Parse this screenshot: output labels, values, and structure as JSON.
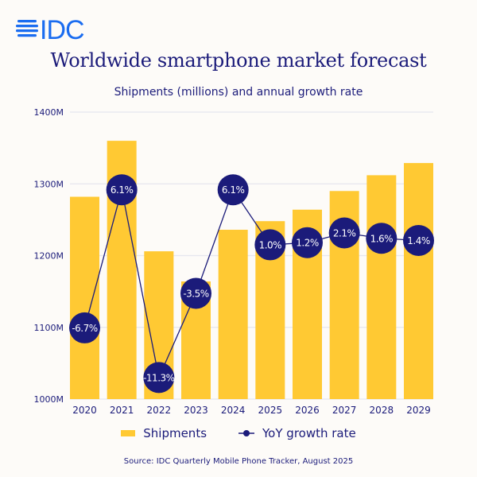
{
  "logo": {
    "text": "IDC",
    "color": "#1a6cf0"
  },
  "colors": {
    "bar": "#ffc933",
    "line": "#1b1b7a",
    "circle": "#1b1b7a",
    "grid": "#e6e6ee",
    "background": "#fdfbf8"
  },
  "chart_data": {
    "type": "bar",
    "title": "Worldwide smartphone market forecast",
    "subtitle": "Shipments (millions) and annual growth rate",
    "categories": [
      "2020",
      "2021",
      "2022",
      "2023",
      "2024",
      "2025",
      "2026",
      "2027",
      "2028",
      "2029"
    ],
    "series": [
      {
        "name": "Shipments",
        "type": "bar",
        "unit": "millions",
        "values": [
          1282,
          1360,
          1206,
          1164,
          1236,
          1248,
          1264,
          1290,
          1312,
          1329
        ]
      },
      {
        "name": "YoY growth rate",
        "type": "line",
        "unit": "%",
        "values": [
          -6.7,
          6.1,
          -11.3,
          -3.5,
          6.1,
          1.0,
          1.2,
          2.1,
          1.6,
          1.4
        ],
        "labels": [
          "-6.7%",
          "6.1%",
          "-11.3%",
          "-3.5%",
          "6.1%",
          "1.0%",
          "1.2%",
          "2.1%",
          "1.6%",
          "1.4%"
        ]
      }
    ],
    "ylim": [
      1000,
      1400
    ],
    "y2lim": [
      -13.3,
      13.3
    ],
    "yticks": [
      1000,
      1100,
      1200,
      1300,
      1400
    ],
    "ytick_labels": [
      "1000M",
      "1100M",
      "1200M",
      "1300M",
      "1400M"
    ],
    "grid": true,
    "legend_placement": "bottom"
  },
  "legend": {
    "shipments": "Shipments",
    "growth": "YoY growth rate"
  },
  "source": "Source:  IDC Quarterly Mobile Phone Tracker, August 2025"
}
